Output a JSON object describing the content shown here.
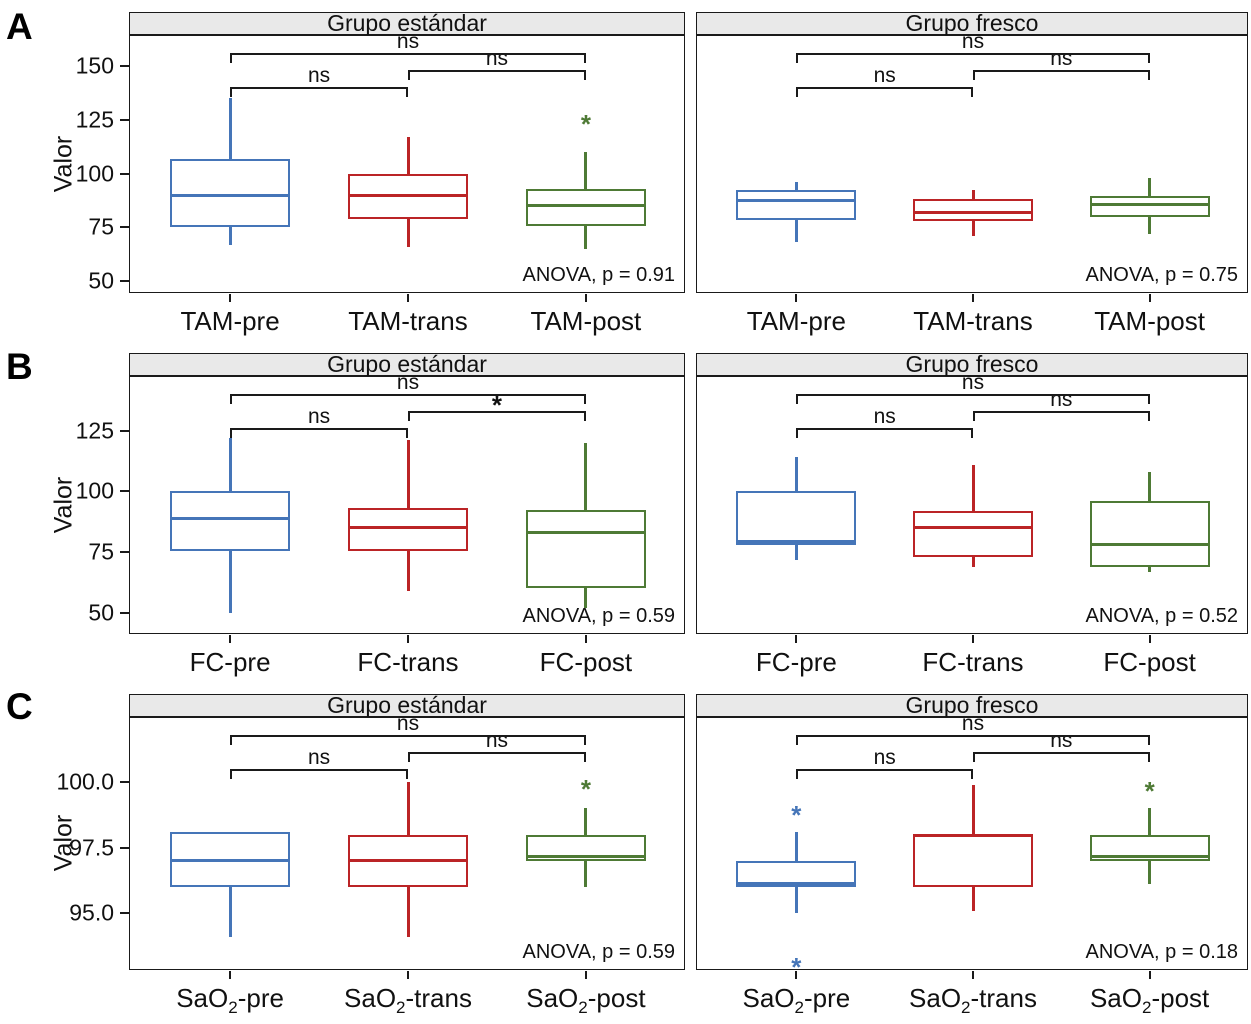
{
  "figure": {
    "panel_labels": [
      "A",
      "B",
      "C"
    ],
    "y_axis_title": "Valor",
    "colors": {
      "blue": "#4575b8",
      "red": "#bb2426",
      "green": "#4e7a35",
      "header_bg": "#e9e9e9",
      "frame": "#1a1a1a"
    }
  },
  "chart_data": [
    {
      "type": "boxplot",
      "row": "A",
      "side": "left",
      "title": "Grupo estándar",
      "ylabel": "Valor",
      "ylim": [
        44,
        164
      ],
      "yticks": [
        {
          "v": 150,
          "label": "150"
        },
        {
          "v": 125,
          "label": "125"
        },
        {
          "v": 100,
          "label": "100"
        },
        {
          "v": 75,
          "label": "75"
        },
        {
          "v": 50,
          "label": "50"
        }
      ],
      "categories": [
        {
          "base": "TAM",
          "sub": "",
          "suffix": "-pre"
        },
        {
          "base": "TAM",
          "sub": "",
          "suffix": "-trans"
        },
        {
          "base": "TAM",
          "sub": "",
          "suffix": "-post"
        }
      ],
      "boxes": [
        {
          "name": "TAM-pre",
          "color": "blue",
          "lo": 67,
          "q1": 75,
          "med": 90,
          "q3": 107,
          "hi": 135,
          "outliers": []
        },
        {
          "name": "TAM-trans",
          "color": "red",
          "lo": 66,
          "q1": 79,
          "med": 90,
          "q3": 100,
          "hi": 117,
          "outliers": []
        },
        {
          "name": "TAM-post",
          "color": "green",
          "lo": 65,
          "q1": 75.5,
          "med": 85,
          "q3": 93,
          "hi": 110,
          "outliers": [
            125
          ]
        }
      ],
      "comparisons": [
        {
          "a": 0,
          "b": 1,
          "label": "ns",
          "level": 0
        },
        {
          "a": 1,
          "b": 2,
          "label": "ns",
          "level": 1
        },
        {
          "a": 0,
          "b": 2,
          "label": "ns",
          "level": 2
        }
      ],
      "anova": "ANOVA, p = 0.91"
    },
    {
      "type": "boxplot",
      "row": "A",
      "side": "right",
      "title": "Grupo fresco",
      "ylabel": "",
      "ylim": [
        44,
        164
      ],
      "yticks": [],
      "categories": [
        {
          "base": "TAM",
          "sub": "",
          "suffix": "-pre"
        },
        {
          "base": "TAM",
          "sub": "",
          "suffix": "-trans"
        },
        {
          "base": "TAM",
          "sub": "",
          "suffix": "-post"
        }
      ],
      "boxes": [
        {
          "name": "TAM-pre",
          "color": "blue",
          "lo": 68,
          "q1": 78.5,
          "med": 87.5,
          "q3": 92.5,
          "hi": 96,
          "outliers": []
        },
        {
          "name": "TAM-trans",
          "color": "red",
          "lo": 71,
          "q1": 78,
          "med": 82,
          "q3": 88,
          "hi": 92.5,
          "outliers": []
        },
        {
          "name": "TAM-post",
          "color": "green",
          "lo": 72,
          "q1": 80,
          "med": 85.5,
          "q3": 89.5,
          "hi": 98,
          "outliers": []
        }
      ],
      "comparisons": [
        {
          "a": 0,
          "b": 1,
          "label": "ns",
          "level": 0
        },
        {
          "a": 1,
          "b": 2,
          "label": "ns",
          "level": 1
        },
        {
          "a": 0,
          "b": 2,
          "label": "ns",
          "level": 2
        }
      ],
      "anova": "ANOVA, p = 0.75"
    },
    {
      "type": "boxplot",
      "row": "B",
      "side": "left",
      "title": "Grupo estándar",
      "ylabel": "Valor",
      "ylim": [
        41,
        147
      ],
      "yticks": [
        {
          "v": 125,
          "label": "125"
        },
        {
          "v": 100,
          "label": "100"
        },
        {
          "v": 75,
          "label": "75"
        },
        {
          "v": 50,
          "label": "50"
        }
      ],
      "categories": [
        {
          "base": "FC",
          "sub": "",
          "suffix": "-pre"
        },
        {
          "base": "FC",
          "sub": "",
          "suffix": "-trans"
        },
        {
          "base": "FC",
          "sub": "",
          "suffix": "-post"
        }
      ],
      "boxes": [
        {
          "name": "FC-pre",
          "color": "blue",
          "lo": 50,
          "q1": 75.5,
          "med": 89,
          "q3": 100,
          "hi": 122,
          "outliers": []
        },
        {
          "name": "FC-trans",
          "color": "red",
          "lo": 59,
          "q1": 75.5,
          "med": 85,
          "q3": 93,
          "hi": 121,
          "outliers": []
        },
        {
          "name": "FC-post",
          "color": "green",
          "lo": 52,
          "q1": 60.5,
          "med": 83,
          "q3": 92.5,
          "hi": 120,
          "outliers": []
        }
      ],
      "comparisons": [
        {
          "a": 0,
          "b": 1,
          "label": "ns",
          "level": 0
        },
        {
          "a": 1,
          "b": 2,
          "label": "*",
          "level": 1
        },
        {
          "a": 0,
          "b": 2,
          "label": "ns",
          "level": 2
        }
      ],
      "anova": "ANOVA, p = 0.59"
    },
    {
      "type": "boxplot",
      "row": "B",
      "side": "right",
      "title": "Grupo fresco",
      "ylabel": "",
      "ylim": [
        41,
        147
      ],
      "yticks": [],
      "categories": [
        {
          "base": "FC",
          "sub": "",
          "suffix": "-pre"
        },
        {
          "base": "FC",
          "sub": "",
          "suffix": "-trans"
        },
        {
          "base": "FC",
          "sub": "",
          "suffix": "-post"
        }
      ],
      "boxes": [
        {
          "name": "FC-pre",
          "color": "blue",
          "lo": 72,
          "q1": 78,
          "med": 79.5,
          "q3": 100,
          "hi": 114,
          "outliers": []
        },
        {
          "name": "FC-trans",
          "color": "red",
          "lo": 69,
          "q1": 73,
          "med": 85,
          "q3": 92,
          "hi": 111,
          "outliers": []
        },
        {
          "name": "FC-post",
          "color": "green",
          "lo": 67,
          "q1": 69,
          "med": 78,
          "q3": 96,
          "hi": 108,
          "outliers": []
        }
      ],
      "comparisons": [
        {
          "a": 0,
          "b": 1,
          "label": "ns",
          "level": 0
        },
        {
          "a": 1,
          "b": 2,
          "label": "ns",
          "level": 1
        },
        {
          "a": 0,
          "b": 2,
          "label": "ns",
          "level": 2
        }
      ],
      "anova": "ANOVA, p = 0.52"
    },
    {
      "type": "boxplot",
      "row": "C",
      "side": "left",
      "title": "Grupo estándar",
      "ylabel": "Valor",
      "ylim": [
        92.8,
        102.45
      ],
      "yticks": [
        {
          "v": 100.0,
          "label": "100.0"
        },
        {
          "v": 97.5,
          "label": "97.5"
        },
        {
          "v": 95.0,
          "label": "95.0"
        }
      ],
      "categories": [
        {
          "base": "SaO",
          "sub": "2",
          "suffix": "-pre"
        },
        {
          "base": "SaO",
          "sub": "2",
          "suffix": "-trans"
        },
        {
          "base": "SaO",
          "sub": "2",
          "suffix": "-post"
        }
      ],
      "boxes": [
        {
          "name": "SaO2-pre",
          "color": "blue",
          "lo": 94.1,
          "q1": 96,
          "med": 97,
          "q3": 98.1,
          "hi": 98.1,
          "outliers": []
        },
        {
          "name": "SaO2-trans",
          "color": "red",
          "lo": 94.1,
          "q1": 96,
          "med": 97,
          "q3": 98,
          "hi": 100,
          "outliers": []
        },
        {
          "name": "SaO2-post",
          "color": "green",
          "lo": 96,
          "q1": 97,
          "med": 97.15,
          "q3": 98,
          "hi": 99,
          "outliers": [
            99.9
          ]
        }
      ],
      "comparisons": [
        {
          "a": 0,
          "b": 1,
          "label": "ns",
          "level": 0
        },
        {
          "a": 1,
          "b": 2,
          "label": "ns",
          "level": 1
        },
        {
          "a": 0,
          "b": 2,
          "label": "ns",
          "level": 2
        }
      ],
      "anova": "ANOVA, p = 0.59"
    },
    {
      "type": "boxplot",
      "row": "C",
      "side": "right",
      "title": "Grupo fresco",
      "ylabel": "",
      "ylim": [
        92.8,
        102.45
      ],
      "yticks": [],
      "categories": [
        {
          "base": "SaO",
          "sub": "2",
          "suffix": "-pre"
        },
        {
          "base": "SaO",
          "sub": "2",
          "suffix": "-trans"
        },
        {
          "base": "SaO",
          "sub": "2",
          "suffix": "-post"
        }
      ],
      "boxes": [
        {
          "name": "SaO2-pre",
          "color": "blue",
          "lo": 95,
          "q1": 96,
          "med": 96.15,
          "q3": 97,
          "hi": 98.1,
          "outliers": [
            98.9,
            93.1
          ]
        },
        {
          "name": "SaO2-trans",
          "color": "red",
          "lo": 95.1,
          "q1": 96,
          "med": 97.95,
          "q3": 98,
          "hi": 99.9,
          "outliers": []
        },
        {
          "name": "SaO2-post",
          "color": "green",
          "lo": 96.1,
          "q1": 97,
          "med": 97.15,
          "q3": 98,
          "hi": 99,
          "outliers": [
            99.8
          ]
        }
      ],
      "comparisons": [
        {
          "a": 0,
          "b": 1,
          "label": "ns",
          "level": 0
        },
        {
          "a": 1,
          "b": 2,
          "label": "ns",
          "level": 1
        },
        {
          "a": 0,
          "b": 2,
          "label": "ns",
          "level": 2
        }
      ],
      "anova": "ANOVA, p = 0.18"
    }
  ]
}
